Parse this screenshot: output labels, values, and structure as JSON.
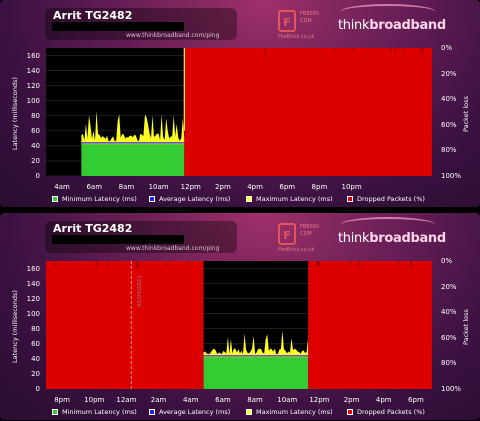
{
  "colors": {
    "min_latency": "#33cc33",
    "avg_latency": "#2222ff",
    "max_latency": "#ffff22",
    "dropped": "#dd0000",
    "plot_bg": "#000000"
  },
  "panels": [
    {
      "title": "Arrit TG2482",
      "url": "www.thinkbroadband.com/ping",
      "fb_text": [
        "FB8000",
        "CDM"
      ],
      "fb_url": "FireBrick.co.uk",
      "brand_a": "think",
      "brand_b": "broadband",
      "ylabel_left": "Latency (milliseconds)",
      "ylabel_right": "Packet loss",
      "date_label": "",
      "legend": [
        "Minimum Latency (ms)",
        "Average Latency (ms)",
        "Maximum Latency (ms)",
        "Dropped Packets (%)"
      ]
    },
    {
      "title": "Arrit TG2482",
      "url": "www.thinkbroadband.com/ping",
      "fb_text": [
        "FB8000",
        "CDM"
      ],
      "fb_url": "FireBrick.co.uk",
      "brand_a": "think",
      "brand_b": "broadband",
      "ylabel_left": "Latency (milliseconds)",
      "ylabel_right": "Packet loss",
      "date_label": "02/09/2021",
      "legend": [
        "Minimum Latency (ms)",
        "Average Latency (ms)",
        "Maximum Latency (ms)",
        "Dropped Packets (%)"
      ]
    }
  ],
  "chart_data": [
    {
      "type": "area",
      "title": "Arrit TG2482",
      "xlabel": "",
      "ylabel": "Latency (milliseconds)",
      "ylabel_right": "Packet loss",
      "ylim": [
        0,
        170
      ],
      "yticks": [
        0,
        20,
        40,
        60,
        80,
        100,
        120,
        140,
        160
      ],
      "y2ticks": [
        "0%",
        "20%",
        "40%",
        "60%",
        "80%",
        "100%"
      ],
      "xlim": [
        3,
        27
      ],
      "x_ticks": [
        "4am",
        "6am",
        "8am",
        "10am",
        "12pm",
        "2pm",
        "4pm",
        "6pm",
        "8pm",
        "10pm"
      ],
      "x_tick_hours": [
        4,
        6,
        8,
        10,
        12,
        14,
        16,
        18,
        20,
        22
      ],
      "segments": [
        {
          "start_hour": 3.0,
          "end_hour": 5.2,
          "state": "no_data"
        },
        {
          "start_hour": 5.2,
          "end_hour": 11.6,
          "state": "ok",
          "min_latency": 42,
          "avg_latency": 44,
          "max_latency_typical": 55,
          "max_latency_peak": 90
        },
        {
          "start_hour": 11.6,
          "end_hour": 27.0,
          "state": "dropped",
          "dropped_packets_pct": 100
        }
      ],
      "spike": {
        "hour": 11.6,
        "value": 170
      },
      "series": [
        {
          "name": "Minimum Latency (ms)"
        },
        {
          "name": "Average Latency (ms)"
        },
        {
          "name": "Maximum Latency (ms)"
        },
        {
          "name": "Dropped Packets (%)"
        }
      ],
      "legend_position": "bottom"
    },
    {
      "type": "area",
      "title": "Arrit TG2482",
      "xlabel": "",
      "ylabel": "Latency (milliseconds)",
      "ylabel_right": "Packet loss",
      "ylim": [
        0,
        170
      ],
      "yticks": [
        0,
        20,
        40,
        60,
        80,
        100,
        120,
        140,
        160
      ],
      "y2ticks": [
        "0%",
        "20%",
        "40%",
        "60%",
        "80%",
        "100%"
      ],
      "xlim": [
        19,
        43
      ],
      "x_ticks": [
        "8pm",
        "10pm",
        "12am",
        "2am",
        "4am",
        "6am",
        "8am",
        "10am",
        "12pm",
        "2pm",
        "4pm",
        "6pm"
      ],
      "x_tick_hours": [
        20,
        22,
        24,
        26,
        28,
        30,
        32,
        34,
        36,
        38,
        40,
        42
      ],
      "date_marker_hour": 24.3,
      "segments": [
        {
          "start_hour": 19.0,
          "end_hour": 28.8,
          "state": "dropped",
          "dropped_packets_pct": 100
        },
        {
          "start_hour": 28.8,
          "end_hour": 35.3,
          "state": "ok",
          "min_latency": 42,
          "avg_latency": 44,
          "max_latency_typical": 52,
          "max_latency_peak": 80
        },
        {
          "start_hour": 35.3,
          "end_hour": 43.0,
          "state": "dropped",
          "dropped_packets_pct": 100
        }
      ],
      "series": [
        {
          "name": "Minimum Latency (ms)"
        },
        {
          "name": "Average Latency (ms)"
        },
        {
          "name": "Maximum Latency (ms)"
        },
        {
          "name": "Dropped Packets (%)"
        }
      ],
      "legend_position": "bottom"
    }
  ]
}
